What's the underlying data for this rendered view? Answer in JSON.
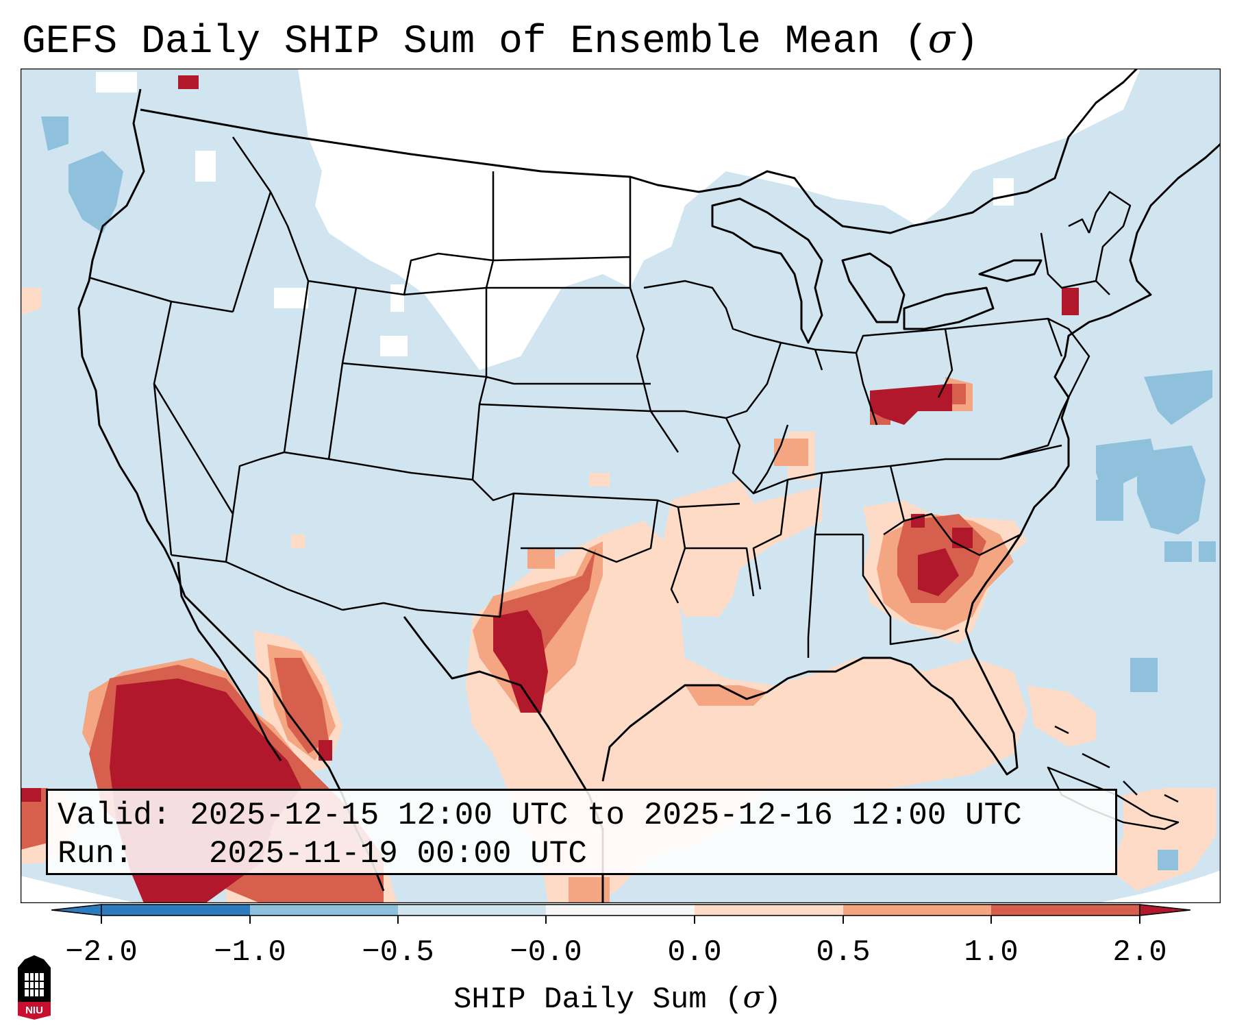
{
  "title": {
    "prefix": "GEFS Daily SHIP Sum of Ensemble Mean (",
    "symbol": "σ",
    "suffix": ")"
  },
  "info_box": {
    "valid_label": "Valid:",
    "valid_value": "2025-12-15 12:00 UTC to 2025-12-16 12:00 UTC",
    "run_label": "Run:",
    "run_value": "2025-11-19 00:00 UTC"
  },
  "colorbar": {
    "label_prefix": "SHIP Daily Sum (",
    "label_symbol": "σ",
    "label_suffix": ")",
    "ticks": [
      "−2.0",
      "−1.0",
      "−0.5",
      "−0.0",
      "0.0",
      "0.5",
      "1.0",
      "2.0"
    ],
    "colors": [
      "#2b7bbd",
      "#8fc1dd",
      "#d1e5f0",
      "#f7f7f7",
      "#fddbc7",
      "#f4a582",
      "#d6604d",
      "#b2182b"
    ]
  },
  "logo": {
    "text": "NIU",
    "name": "Northern Illinois University"
  },
  "map": {
    "background": "#d1e5f0",
    "regions": [
      {
        "name": "white-northern-plains",
        "category": "near-zero"
      },
      {
        "name": "southern-plains-anomaly",
        "category": "positive"
      },
      {
        "name": "gulf-coast-anomaly",
        "category": "positive"
      },
      {
        "name": "southeast-anomaly",
        "category": "positive"
      },
      {
        "name": "ohio-valley-anomaly",
        "category": "strong-positive"
      },
      {
        "name": "baja-pacific-anomaly",
        "category": "strong-positive"
      },
      {
        "name": "atlantic-negative-patches",
        "category": "negative"
      }
    ]
  }
}
